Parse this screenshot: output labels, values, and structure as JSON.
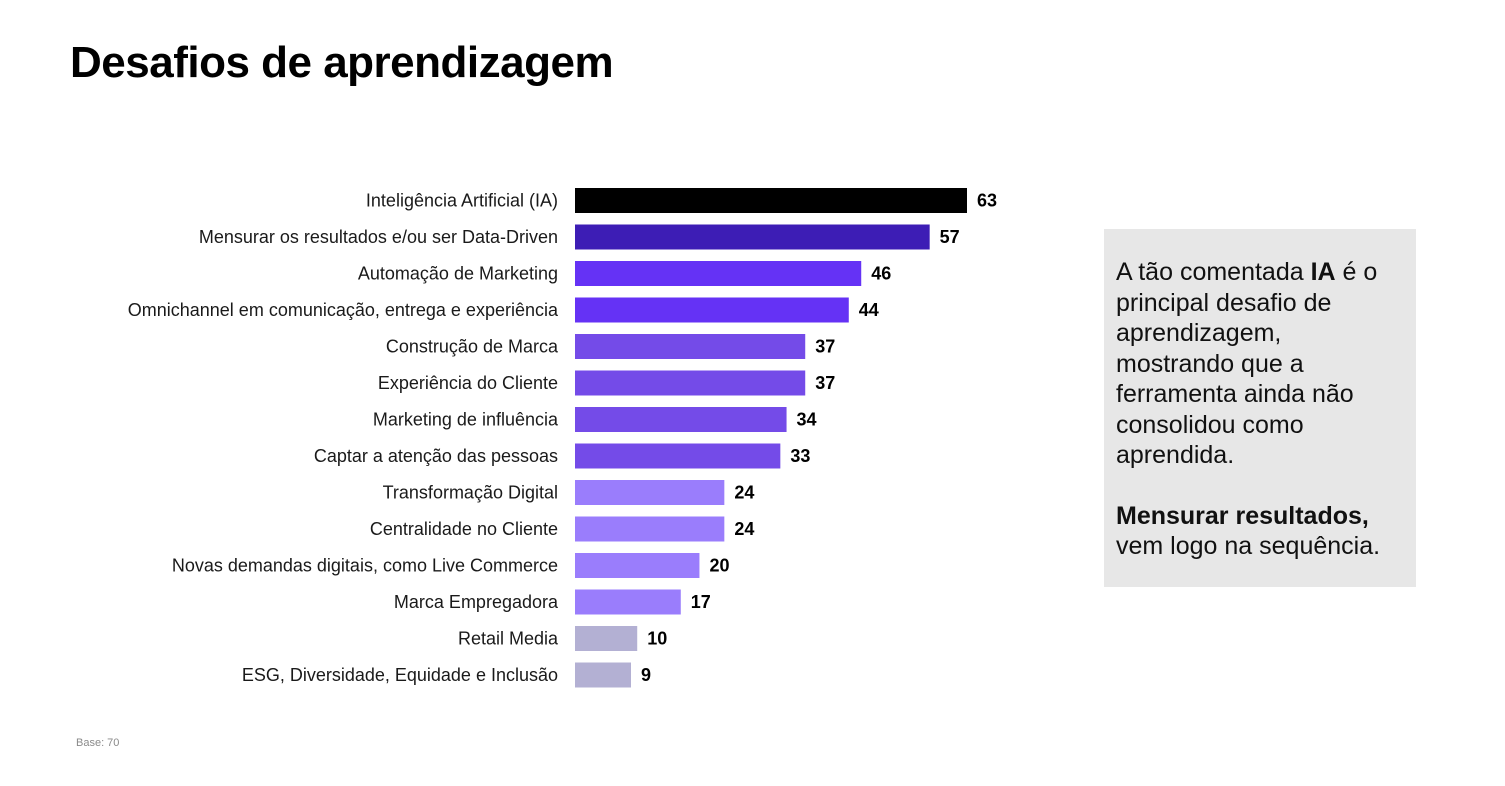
{
  "title": "Desafios de aprendizagem",
  "chart_data": {
    "type": "bar",
    "orientation": "horizontal",
    "title": "Desafios de aprendizagem",
    "xlabel": "",
    "ylabel": "",
    "xlim": [
      0,
      63
    ],
    "grid": false,
    "categories": [
      "Inteligência Artificial (IA)",
      "Mensurar os resultados e/ou ser Data-Driven",
      "Automação de Marketing",
      "Omnichannel em comunicação, entrega e experiência",
      "Construção de Marca",
      "Experiência do Cliente",
      "Marketing de influência",
      "Captar a atenção das pessoas",
      "Transformação Digital",
      "Centralidade no Cliente",
      "Novas demandas digitais, como Live Commerce",
      "Marca Empregadora",
      "Retail Media",
      "ESG, Diversidade, Equidade e Inclusão"
    ],
    "values": [
      63,
      57,
      46,
      44,
      37,
      37,
      34,
      33,
      24,
      24,
      20,
      17,
      10,
      9
    ],
    "colors": [
      "#000000",
      "#3d1db5",
      "#6532f5",
      "#6532f5",
      "#744be8",
      "#744be8",
      "#744be8",
      "#744be8",
      "#9a7dfc",
      "#9a7dfc",
      "#9a7dfc",
      "#9a7dfc",
      "#b3b0d3",
      "#b3b0d3"
    ]
  },
  "insight": {
    "p1_pre": "A tão comentada ",
    "p1_bold": "IA",
    "p1_post": " é o principal desafio de aprendizagem, mostrando que a ferramenta ainda não consolidou como aprendida.",
    "p2_bold": "Mensurar resultados,",
    "p2_post": " vem logo na sequência."
  },
  "footnote": "Base: 70"
}
